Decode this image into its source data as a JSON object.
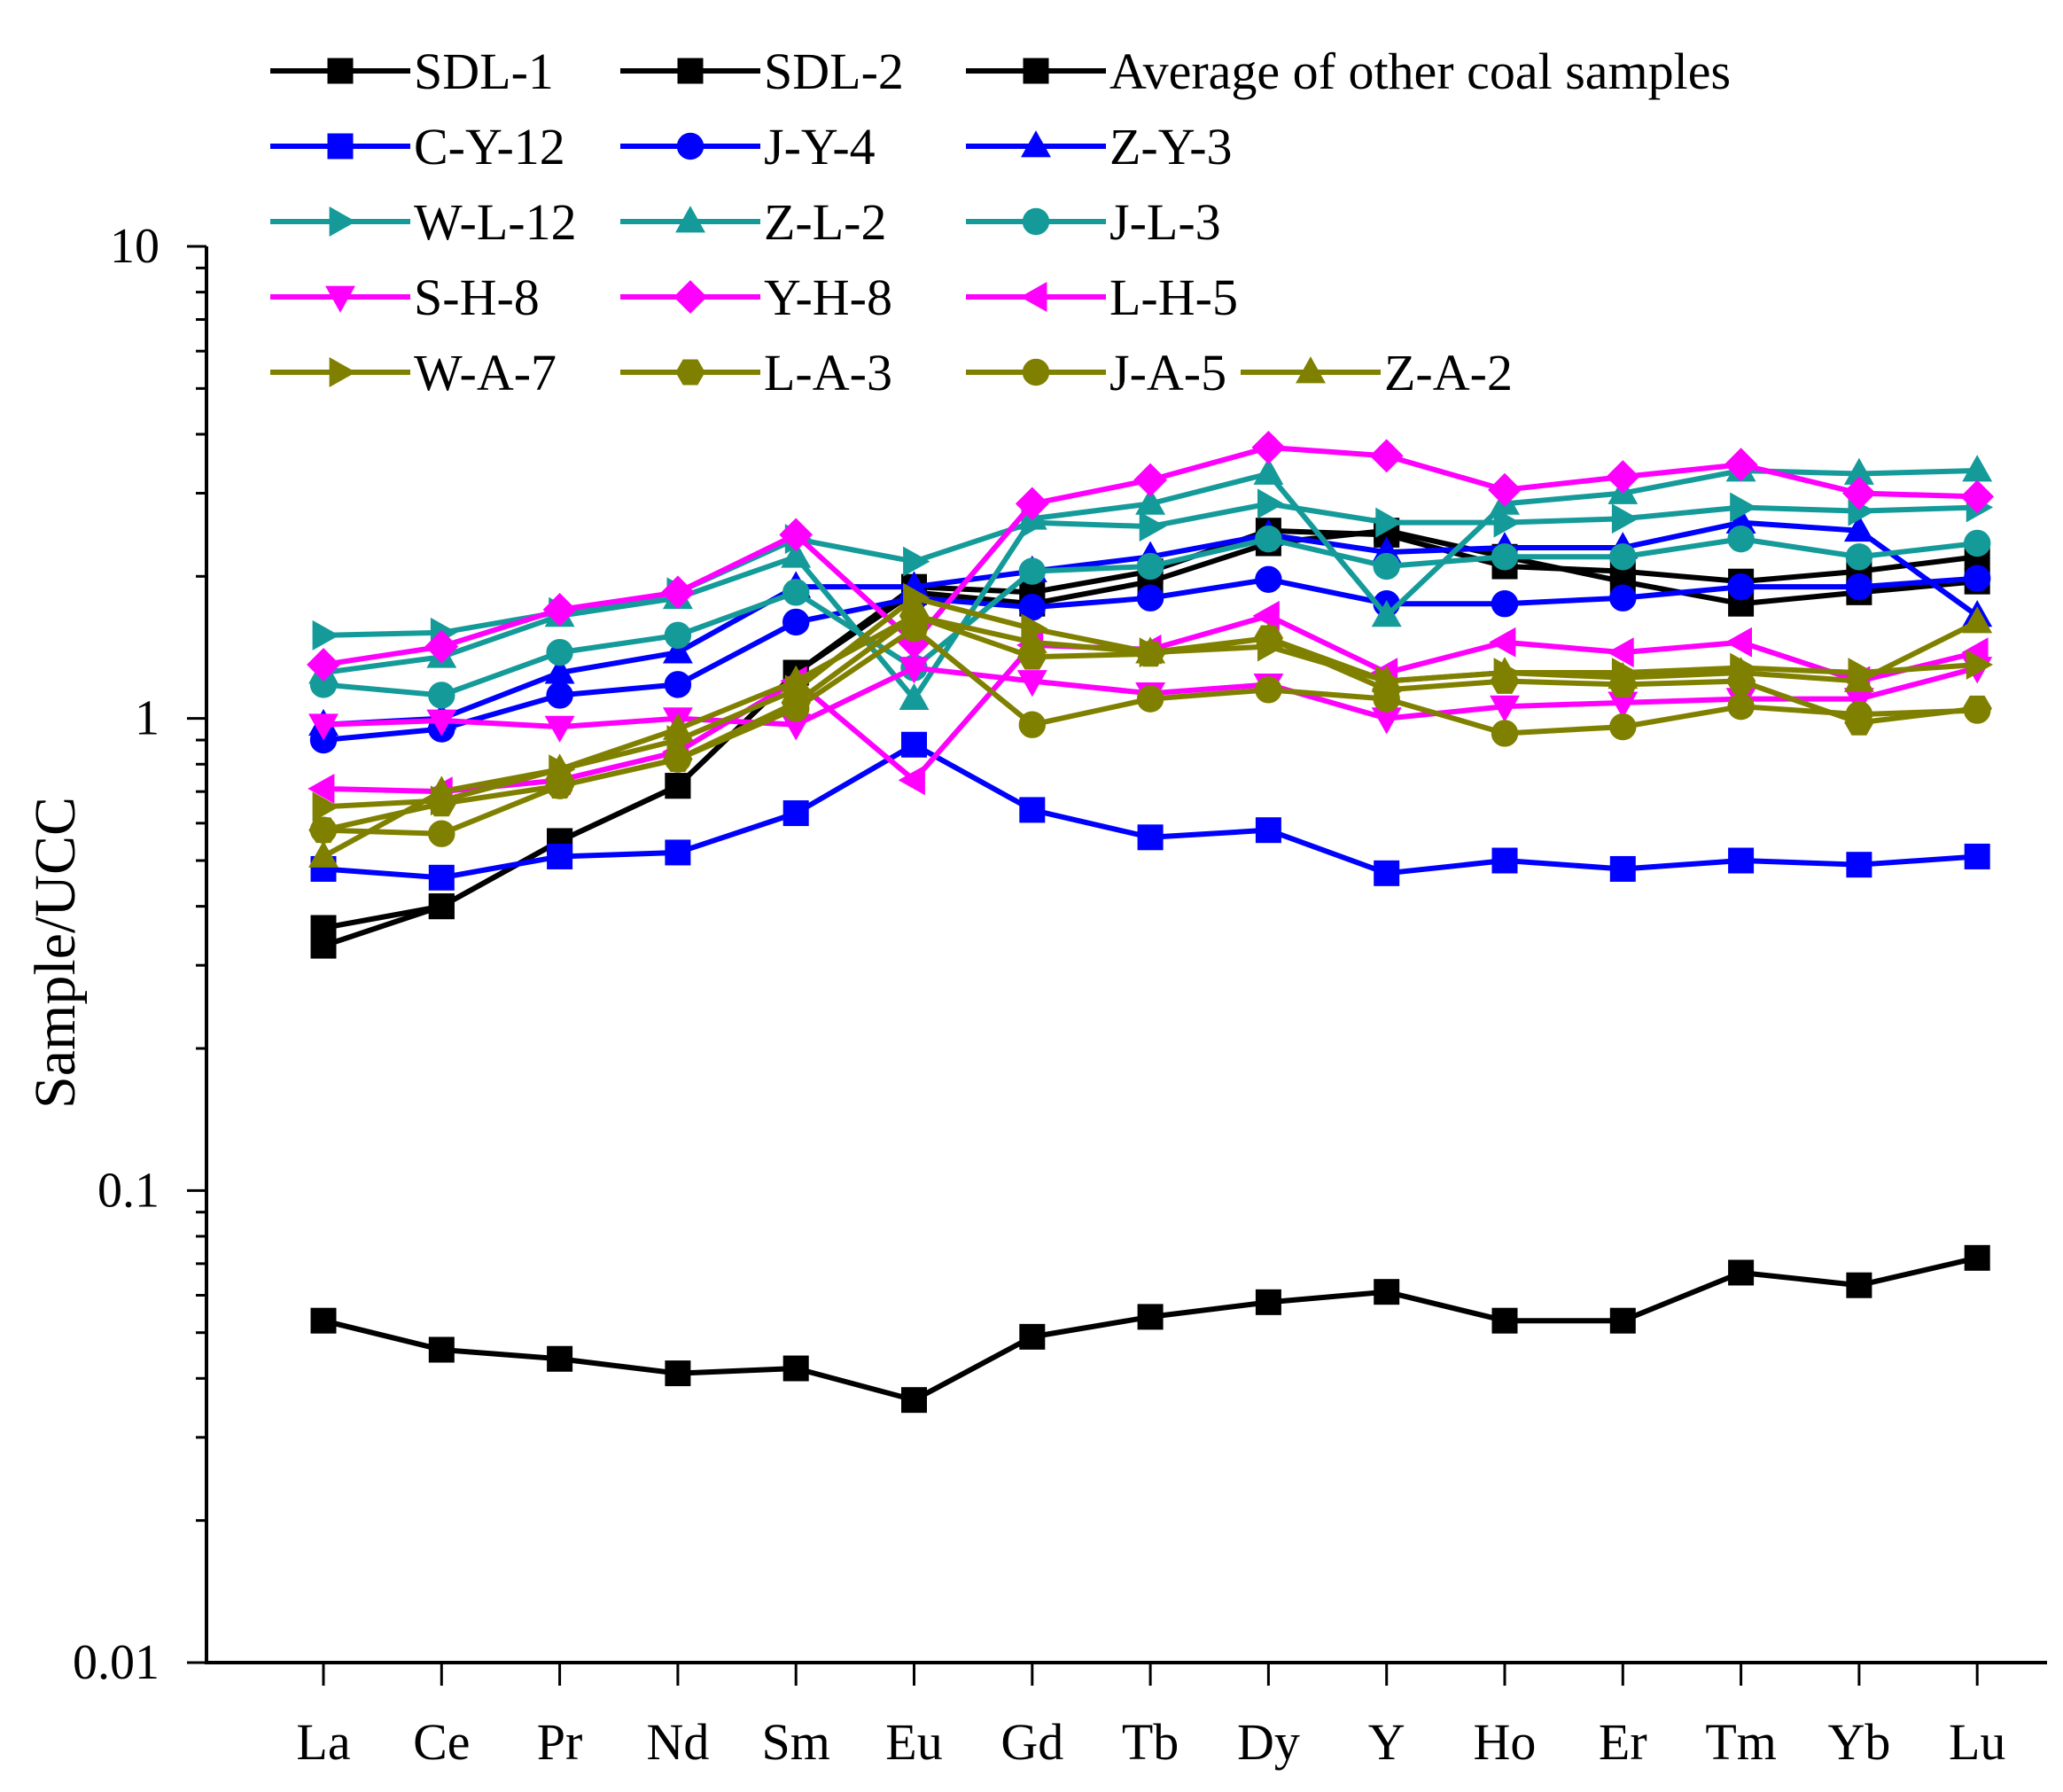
{
  "chart_data": {
    "type": "line",
    "title": "",
    "xlabel": "",
    "ylabel": "Sample/UCC",
    "yscale": "log",
    "ylim": [
      0.01,
      10
    ],
    "yticks": [
      {
        "value": 10,
        "label": "10"
      },
      {
        "value": 1,
        "label": "1"
      },
      {
        "value": 0.1,
        "label": "0.1"
      },
      {
        "value": 0.01,
        "label": "0.01"
      }
    ],
    "categories": [
      "La",
      "Ce",
      "Pr",
      "Nd",
      "Sm",
      "Eu",
      "Gd",
      "Tb",
      "Dy",
      "Y",
      "Ho",
      "Er",
      "Tm",
      "Yb",
      "Lu"
    ],
    "legend_position": "top",
    "series": [
      {
        "name": "SDL-1",
        "color": "#000000",
        "marker": "square",
        "values": [
          0.053,
          0.046,
          0.044,
          0.041,
          0.042,
          0.036,
          0.049,
          0.054,
          0.058,
          0.061,
          0.053,
          0.053,
          0.067,
          0.063,
          0.072
        ]
      },
      {
        "name": "SDL-2",
        "color": "#000000",
        "marker": "square",
        "values": [
          0.33,
          0.4,
          0.55,
          0.72,
          1.25,
          1.85,
          1.75,
          1.95,
          2.35,
          2.5,
          2.2,
          1.95,
          1.75,
          1.85,
          1.95
        ]
      },
      {
        "name": "Average of other coal samples",
        "color": "#000000",
        "marker": "square",
        "values": [
          0.36,
          0.4,
          0.55,
          0.72,
          1.25,
          1.9,
          1.85,
          2.05,
          2.5,
          2.45,
          2.1,
          2.05,
          1.95,
          2.05,
          2.2
        ]
      },
      {
        "name": "C-Y-12",
        "color": "#0000FF",
        "marker": "square",
        "values": [
          0.48,
          0.46,
          0.51,
          0.52,
          0.63,
          0.88,
          0.64,
          0.56,
          0.58,
          0.47,
          0.5,
          0.48,
          0.5,
          0.49,
          0.51
        ]
      },
      {
        "name": "J-Y-4",
        "color": "#0000FF",
        "marker": "circle",
        "values": [
          0.9,
          0.95,
          1.12,
          1.18,
          1.6,
          1.8,
          1.72,
          1.8,
          1.97,
          1.75,
          1.75,
          1.8,
          1.9,
          1.9,
          1.98
        ]
      },
      {
        "name": "Z-Y-3",
        "color": "#0000FF",
        "marker": "triangle-up",
        "values": [
          0.97,
          1.0,
          1.25,
          1.38,
          1.9,
          1.9,
          2.05,
          2.2,
          2.45,
          2.25,
          2.3,
          2.3,
          2.6,
          2.5,
          1.65
        ]
      },
      {
        "name": "W-L-12",
        "color": "#159A9A",
        "marker": "triangle-right",
        "values": [
          1.5,
          1.52,
          1.68,
          1.85,
          2.4,
          2.15,
          2.6,
          2.55,
          2.85,
          2.6,
          2.6,
          2.65,
          2.8,
          2.75,
          2.8
        ]
      },
      {
        "name": "Z-L-2",
        "color": "#159A9A",
        "marker": "triangle-up",
        "values": [
          1.25,
          1.35,
          1.65,
          1.8,
          2.2,
          1.1,
          2.65,
          2.85,
          3.3,
          1.65,
          2.85,
          3.0,
          3.35,
          3.3,
          3.35
        ]
      },
      {
        "name": "J-L-3",
        "color": "#159A9A",
        "marker": "circle",
        "values": [
          1.18,
          1.12,
          1.38,
          1.5,
          1.85,
          1.28,
          2.05,
          2.1,
          2.4,
          2.1,
          2.2,
          2.2,
          2.4,
          2.2,
          2.35
        ]
      },
      {
        "name": "S-H-8",
        "color": "#FF00FF",
        "marker": "triangle-down",
        "values": [
          0.97,
          0.99,
          0.96,
          1.0,
          0.97,
          1.28,
          1.2,
          1.13,
          1.18,
          1.0,
          1.06,
          1.08,
          1.1,
          1.1,
          1.28
        ]
      },
      {
        "name": "Y-H-8",
        "color": "#FF00FF",
        "marker": "diamond",
        "values": [
          1.3,
          1.42,
          1.7,
          1.85,
          2.45,
          1.45,
          2.85,
          3.2,
          3.75,
          3.6,
          3.05,
          3.25,
          3.45,
          3.0,
          2.95
        ]
      },
      {
        "name": "L-H-5",
        "color": "#FF00FF",
        "marker": "triangle-left",
        "values": [
          0.71,
          0.7,
          0.74,
          0.85,
          1.2,
          0.74,
          1.43,
          1.4,
          1.65,
          1.25,
          1.45,
          1.38,
          1.45,
          1.2,
          1.38
        ]
      },
      {
        "name": "W-A-7",
        "color": "#808000",
        "marker": "triangle-right",
        "values": [
          0.65,
          0.67,
          0.78,
          0.9,
          1.15,
          1.8,
          1.55,
          1.38,
          1.42,
          1.2,
          1.25,
          1.25,
          1.28,
          1.25,
          1.3
        ]
      },
      {
        "name": "L-A-3",
        "color": "#808000",
        "marker": "hexagon",
        "values": [
          0.58,
          0.66,
          0.72,
          0.82,
          1.08,
          1.65,
          1.35,
          1.37,
          1.48,
          1.15,
          1.2,
          1.18,
          1.2,
          0.98,
          1.05
        ]
      },
      {
        "name": "J-A-5",
        "color": "#808000",
        "marker": "circle",
        "values": [
          0.58,
          0.57,
          0.72,
          0.82,
          1.05,
          1.55,
          0.97,
          1.1,
          1.15,
          1.1,
          0.93,
          0.96,
          1.06,
          1.02,
          1.04
        ]
      },
      {
        "name": "Z-A-2",
        "color": "#808000",
        "marker": "triangle-up",
        "values": [
          0.51,
          0.7,
          0.78,
          0.95,
          1.2,
          1.65,
          1.45,
          1.38,
          1.48,
          1.2,
          1.25,
          1.22,
          1.25,
          1.2,
          1.6
        ]
      }
    ]
  }
}
